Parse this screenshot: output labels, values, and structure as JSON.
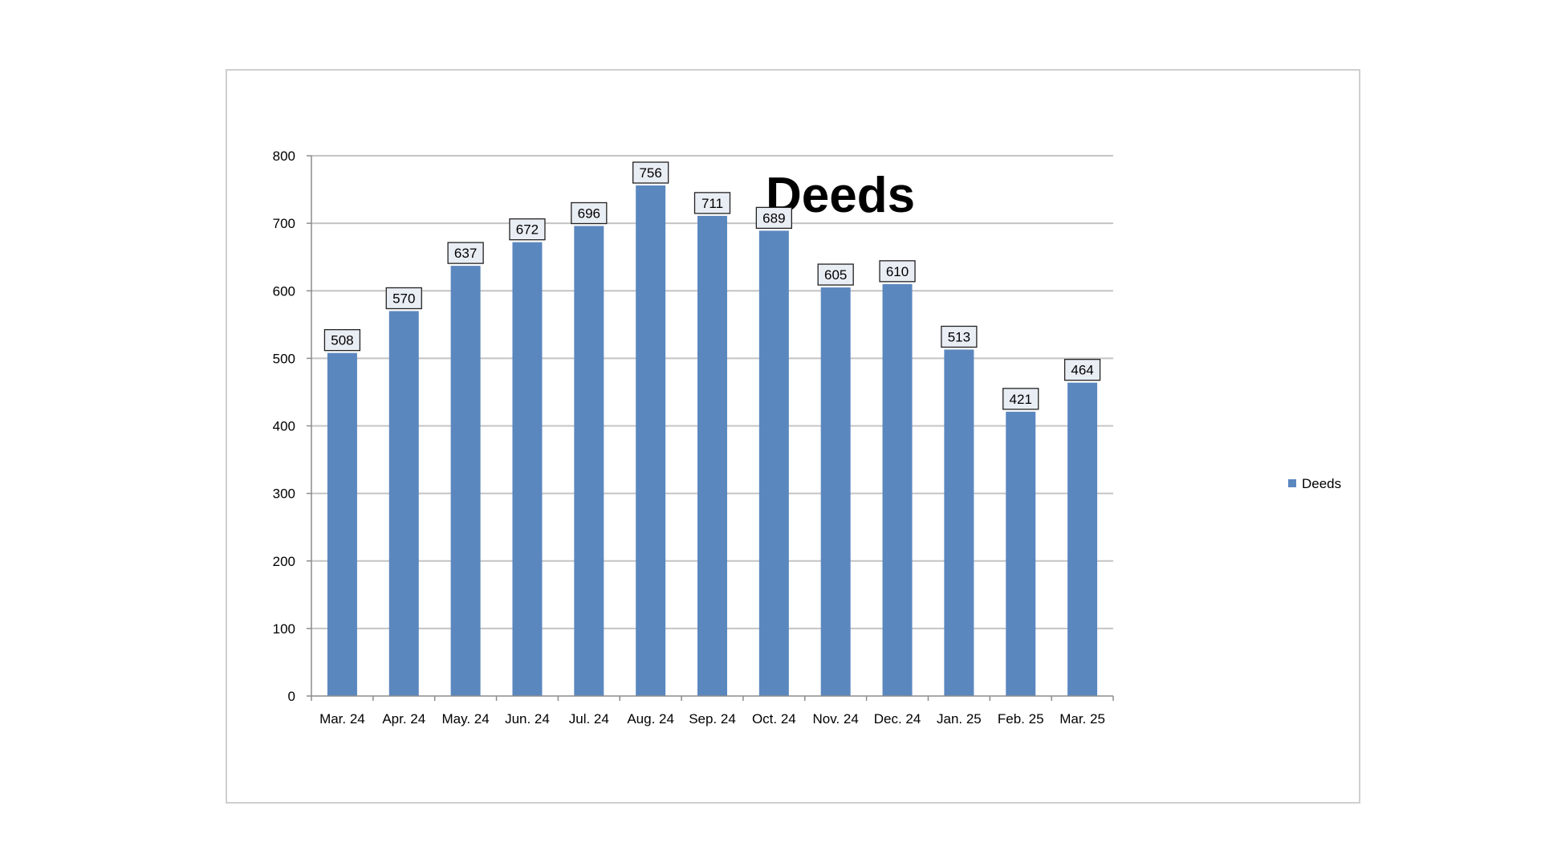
{
  "chart_data": {
    "type": "bar",
    "title": "Deeds",
    "xlabel": "",
    "ylabel": "",
    "categories": [
      "Mar. 24",
      "Apr. 24",
      "May. 24",
      "Jun. 24",
      "Jul. 24",
      "Aug. 24",
      "Sep. 24",
      "Oct. 24",
      "Nov. 24",
      "Dec. 24",
      "Jan. 25",
      "Feb. 25",
      "Mar. 25"
    ],
    "series": [
      {
        "name": "Deeds",
        "values": [
          508,
          570,
          637,
          672,
          696,
          756,
          711,
          689,
          605,
          610,
          513,
          421,
          464
        ],
        "color": "#5b87bf"
      }
    ],
    "ylim": [
      0,
      800
    ],
    "yticks": [
      0,
      100,
      200,
      300,
      400,
      500,
      600,
      700,
      800
    ],
    "grid": true,
    "legend_position": "right",
    "data_labels": true
  }
}
